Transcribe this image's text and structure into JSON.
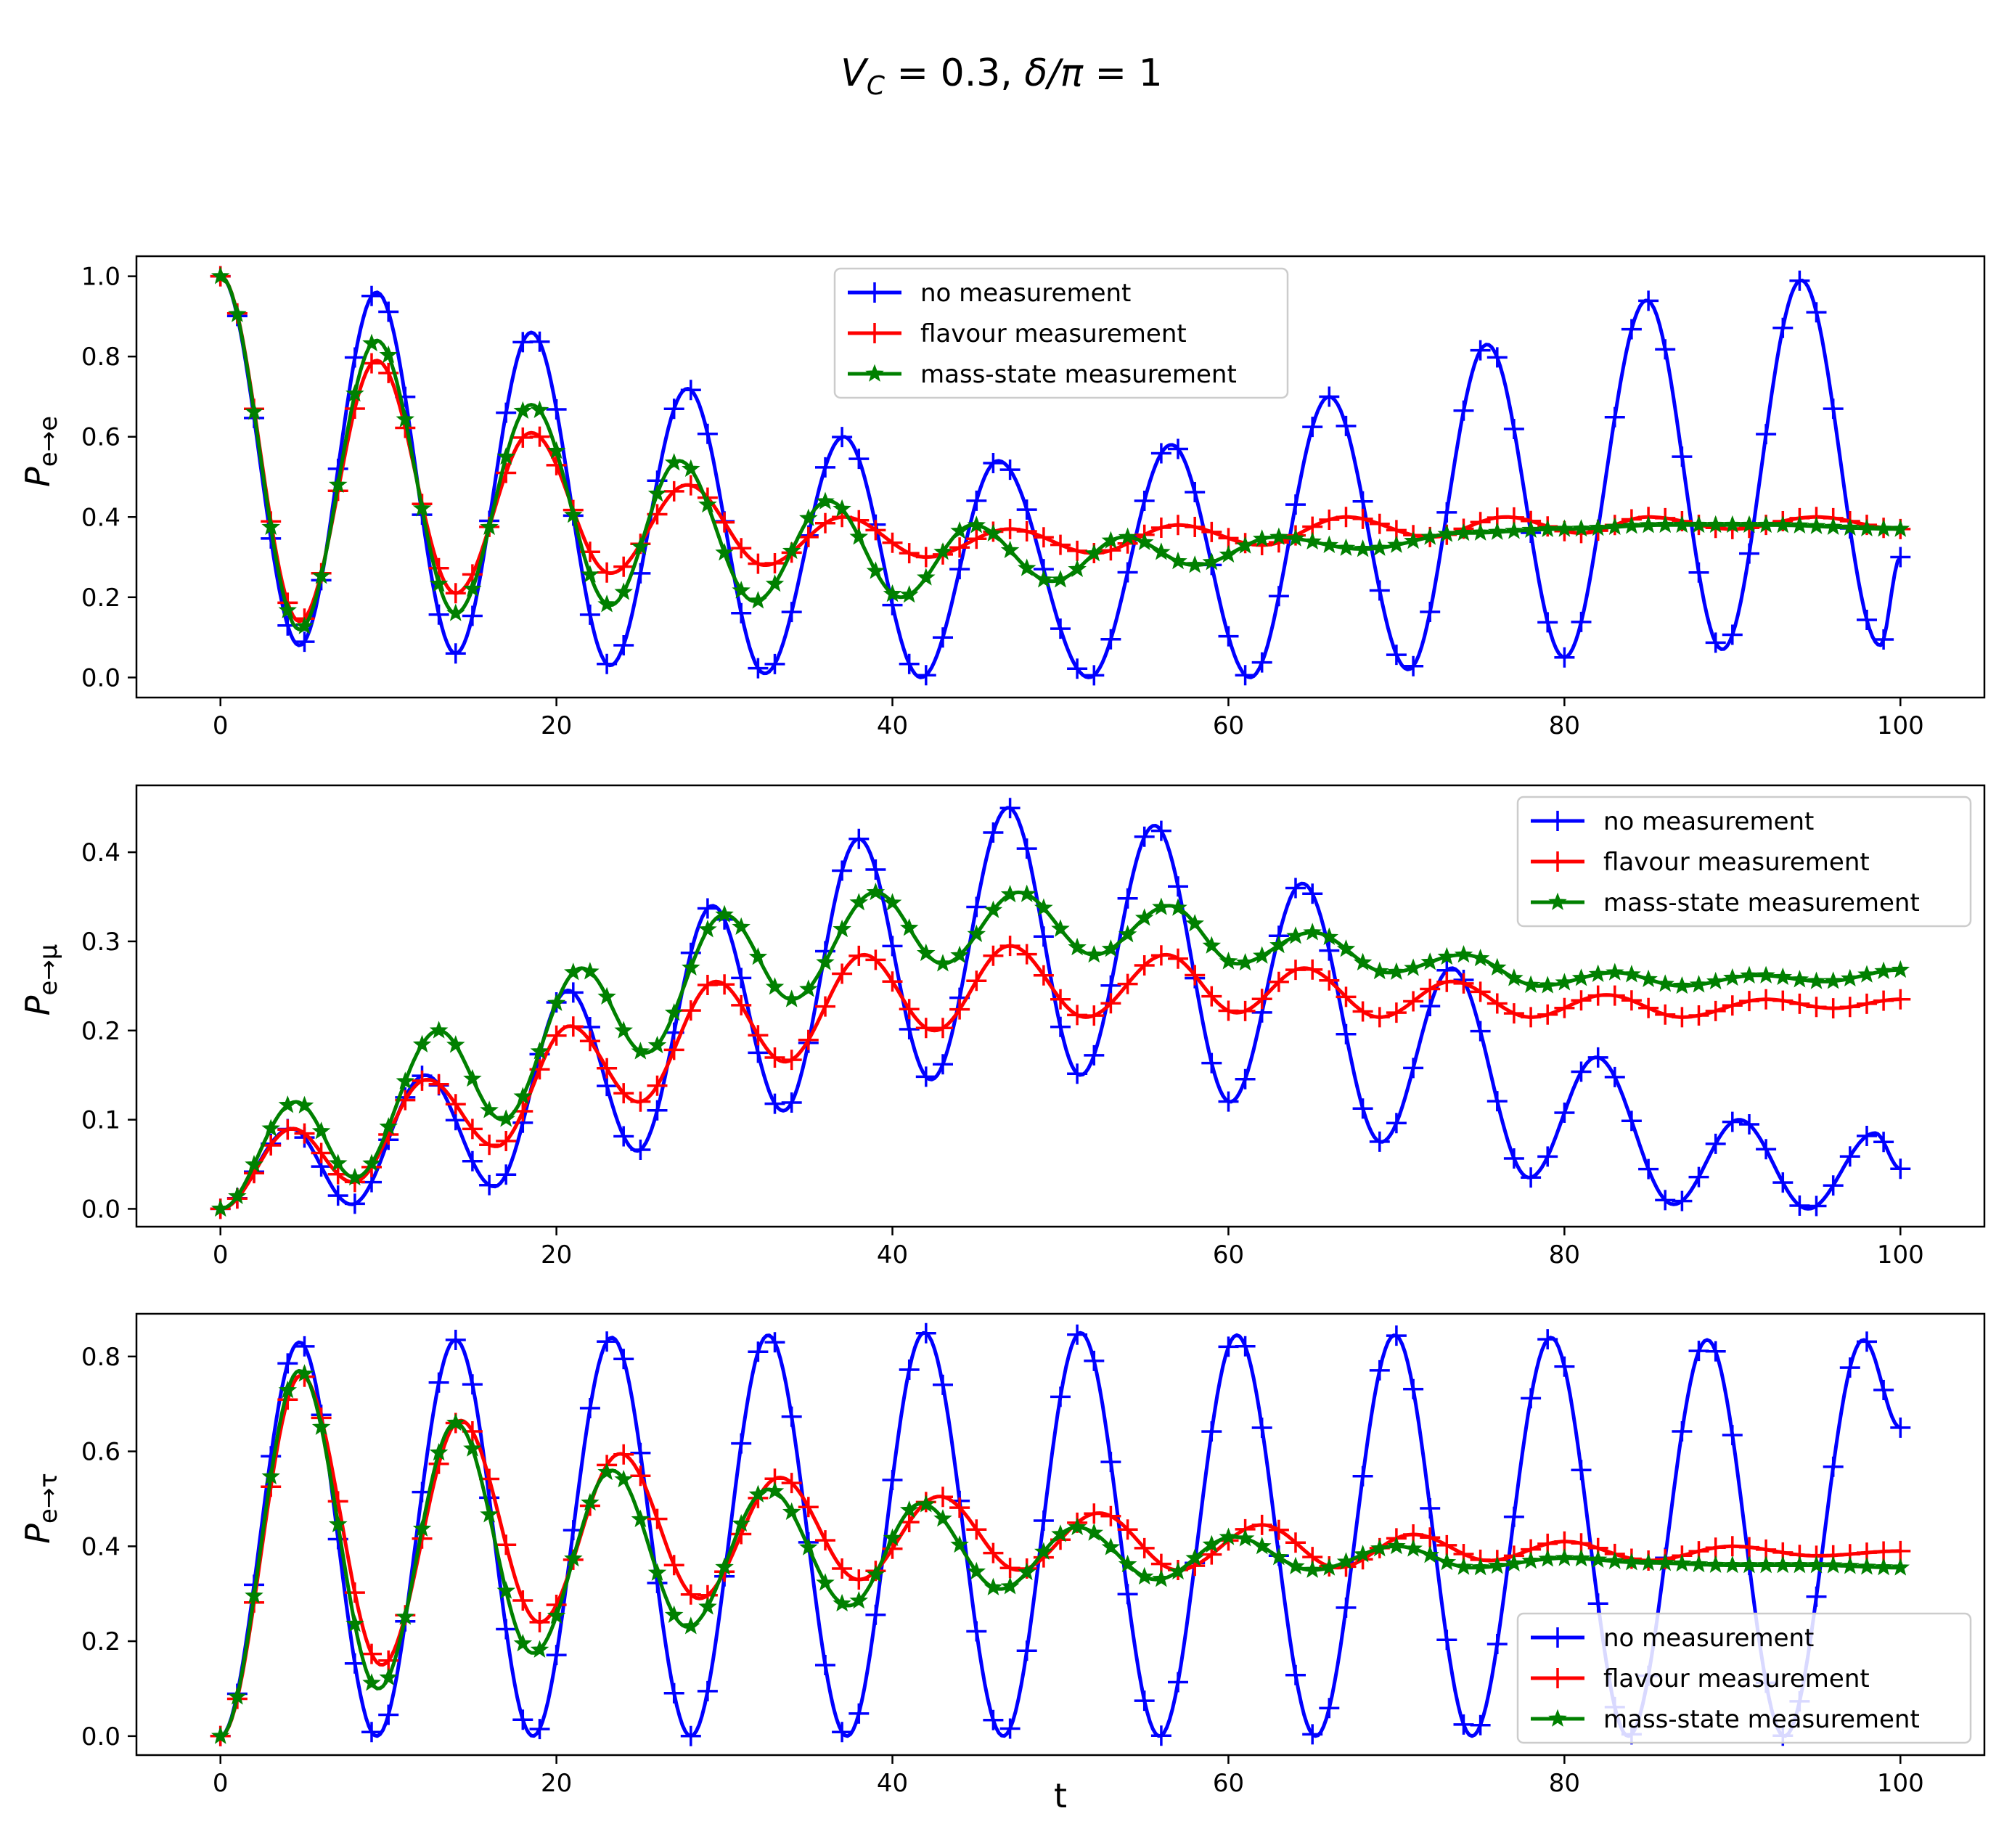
{
  "figure": {
    "suptitle_parts": [
      {
        "id": "vc_sym",
        "text": "V"
      },
      {
        "id": "vc_sub",
        "text": "C"
      },
      {
        "id": "vc_val",
        "text": " = 0.3, "
      },
      {
        "id": "delta_sym",
        "text": "δ/π"
      },
      {
        "id": "delta_val",
        "text": " = 1"
      }
    ],
    "xlabel": "t",
    "legend_labels": [
      "no measurement",
      "flavour measurement",
      "mass-state measurement"
    ],
    "colors": {
      "no": "#0000ff",
      "flavour": "#ff0000",
      "mass": "#008000"
    }
  },
  "chart_data": [
    {
      "type": "line",
      "ylabel": "P_{e→e}",
      "ylabel_parts": [
        "P",
        "e→e"
      ],
      "xlim": [
        -5,
        105
      ],
      "ylim": [
        -0.05,
        1.05
      ],
      "xticks": [
        0,
        20,
        40,
        60,
        80,
        100
      ],
      "xtick_labels": [
        "0",
        "20",
        "40",
        "60",
        "80",
        "100"
      ],
      "yticks": [
        0.0,
        0.2,
        0.4,
        0.6,
        0.8,
        1.0
      ],
      "ytick_labels": [
        "0.0",
        "0.2",
        "0.4",
        "0.6",
        "0.8",
        "1.0"
      ],
      "legend_loc": "upper center",
      "series": [
        {
          "name": "no measurement",
          "color": "#0000ff",
          "marker": "plus",
          "points": [
            [
              0,
              1.0
            ],
            [
              4.7,
              0.08
            ],
            [
              9.3,
              0.96
            ],
            [
              14,
              0.06
            ],
            [
              18.5,
              0.86
            ],
            [
              23.2,
              0.03
            ],
            [
              27.8,
              0.72
            ],
            [
              32.4,
              0.01
            ],
            [
              37.1,
              0.6
            ],
            [
              41.7,
              0.0
            ],
            [
              46.3,
              0.54
            ],
            [
              51.7,
              0.0
            ],
            [
              56.6,
              0.58
            ],
            [
              61.3,
              0.0
            ],
            [
              66,
              0.7
            ],
            [
              70.7,
              0.02
            ],
            [
              75.4,
              0.83
            ],
            [
              80,
              0.05
            ],
            [
              84.9,
              0.94
            ],
            [
              89.4,
              0.07
            ],
            [
              94.1,
              0.99
            ],
            [
              98.8,
              0.08
            ],
            [
              100,
              0.3
            ]
          ]
        },
        {
          "name": "flavour measurement",
          "color": "#ff0000",
          "marker": "plus",
          "points": [
            [
              0,
              1.0
            ],
            [
              4.7,
              0.14
            ],
            [
              9.3,
              0.79
            ],
            [
              14,
              0.21
            ],
            [
              18.5,
              0.61
            ],
            [
              23.2,
              0.26
            ],
            [
              27.8,
              0.48
            ],
            [
              32.4,
              0.28
            ],
            [
              37.1,
              0.4
            ],
            [
              42,
              0.3
            ],
            [
              47,
              0.37
            ],
            [
              52,
              0.31
            ],
            [
              57,
              0.38
            ],
            [
              62,
              0.33
            ],
            [
              67,
              0.4
            ],
            [
              72,
              0.35
            ],
            [
              76.5,
              0.4
            ],
            [
              81,
              0.36
            ],
            [
              85,
              0.4
            ],
            [
              90,
              0.37
            ],
            [
              95,
              0.4
            ],
            [
              100,
              0.37
            ]
          ]
        },
        {
          "name": "mass-state measurement",
          "color": "#008000",
          "marker": "star",
          "points": [
            [
              0,
              1.0
            ],
            [
              4.7,
              0.12
            ],
            [
              9.3,
              0.84
            ],
            [
              14,
              0.16
            ],
            [
              18.5,
              0.68
            ],
            [
              23.2,
              0.18
            ],
            [
              27.3,
              0.54
            ],
            [
              31.8,
              0.19
            ],
            [
              36.2,
              0.44
            ],
            [
              40.5,
              0.2
            ],
            [
              44.8,
              0.38
            ],
            [
              49.5,
              0.24
            ],
            [
              53.8,
              0.35
            ],
            [
              58,
              0.28
            ],
            [
              62.8,
              0.35
            ],
            [
              68,
              0.32
            ],
            [
              74,
              0.36
            ],
            [
              80,
              0.37
            ],
            [
              86,
              0.38
            ],
            [
              92,
              0.38
            ],
            [
              100,
              0.37
            ]
          ]
        }
      ]
    },
    {
      "type": "line",
      "ylabel": "P_{e→μ}",
      "ylabel_parts": [
        "P",
        "e→μ"
      ],
      "xlim": [
        -5,
        105
      ],
      "ylim": [
        -0.02,
        0.475
      ],
      "xticks": [
        0,
        20,
        40,
        60,
        80,
        100
      ],
      "xtick_labels": [
        "0",
        "20",
        "40",
        "60",
        "80",
        "100"
      ],
      "yticks": [
        0.0,
        0.1,
        0.2,
        0.3,
        0.4
      ],
      "ytick_labels": [
        "0.0",
        "0.1",
        "0.2",
        "0.3",
        "0.4"
      ],
      "legend_loc": "upper right",
      "series": [
        {
          "name": "no measurement",
          "color": "#0000ff",
          "marker": "plus",
          "points": [
            [
              0,
              0.0
            ],
            [
              4.2,
              0.09
            ],
            [
              7.8,
              0.005
            ],
            [
              12.2,
              0.15
            ],
            [
              16.3,
              0.025
            ],
            [
              20.7,
              0.245
            ],
            [
              24.8,
              0.065
            ],
            [
              29.3,
              0.34
            ],
            [
              33.5,
              0.11
            ],
            [
              38,
              0.415
            ],
            [
              42.3,
              0.145
            ],
            [
              46.9,
              0.45
            ],
            [
              51.2,
              0.15
            ],
            [
              55.6,
              0.43
            ],
            [
              60.1,
              0.12
            ],
            [
              64.4,
              0.365
            ],
            [
              69.1,
              0.075
            ],
            [
              73.3,
              0.27
            ],
            [
              77.9,
              0.035
            ],
            [
              81.9,
              0.17
            ],
            [
              86.5,
              0.005
            ],
            [
              90.4,
              0.1
            ],
            [
              94.5,
              0.0
            ],
            [
              98.5,
              0.085
            ],
            [
              100,
              0.045
            ]
          ]
        },
        {
          "name": "flavour measurement",
          "color": "#ff0000",
          "marker": "plus",
          "points": [
            [
              0,
              0.0
            ],
            [
              4.3,
              0.09
            ],
            [
              7.9,
              0.03
            ],
            [
              12.3,
              0.145
            ],
            [
              16.4,
              0.07
            ],
            [
              20.8,
              0.205
            ],
            [
              24.9,
              0.12
            ],
            [
              29.5,
              0.255
            ],
            [
              33.6,
              0.165
            ],
            [
              38.3,
              0.285
            ],
            [
              42.5,
              0.2
            ],
            [
              47,
              0.295
            ],
            [
              51.5,
              0.215
            ],
            [
              56.3,
              0.285
            ],
            [
              60.5,
              0.22
            ],
            [
              64.5,
              0.27
            ],
            [
              69,
              0.215
            ],
            [
              73.3,
              0.255
            ],
            [
              78,
              0.215
            ],
            [
              82.5,
              0.24
            ],
            [
              87,
              0.215
            ],
            [
              92,
              0.235
            ],
            [
              96,
              0.225
            ],
            [
              100,
              0.235
            ]
          ]
        },
        {
          "name": "mass-state measurement",
          "color": "#008000",
          "marker": "star",
          "points": [
            [
              0,
              0.0
            ],
            [
              4.5,
              0.12
            ],
            [
              8,
              0.035
            ],
            [
              13,
              0.2
            ],
            [
              16.8,
              0.1
            ],
            [
              21.5,
              0.27
            ],
            [
              25.3,
              0.175
            ],
            [
              30,
              0.33
            ],
            [
              34,
              0.235
            ],
            [
              39,
              0.355
            ],
            [
              43,
              0.275
            ],
            [
              47.5,
              0.355
            ],
            [
              52,
              0.285
            ],
            [
              56.5,
              0.34
            ],
            [
              60.5,
              0.275
            ],
            [
              65,
              0.31
            ],
            [
              69.5,
              0.265
            ],
            [
              74,
              0.285
            ],
            [
              78.5,
              0.25
            ],
            [
              83,
              0.265
            ],
            [
              87,
              0.25
            ],
            [
              91.5,
              0.262
            ],
            [
              95.5,
              0.255
            ],
            [
              100,
              0.268
            ]
          ]
        }
      ]
    },
    {
      "type": "line",
      "ylabel": "P_{e→τ}",
      "ylabel_parts": [
        "P",
        "e→τ"
      ],
      "xlim": [
        -5,
        105
      ],
      "ylim": [
        -0.04,
        0.89
      ],
      "xticks": [
        0,
        20,
        40,
        60,
        80,
        100
      ],
      "xtick_labels": [
        "0",
        "20",
        "40",
        "60",
        "80",
        "100"
      ],
      "yticks": [
        0.0,
        0.2,
        0.4,
        0.6,
        0.8
      ],
      "ytick_labels": [
        "0.0",
        "0.2",
        "0.4",
        "0.6",
        "0.8"
      ],
      "legend_loc": "lower right",
      "series": [
        {
          "name": "no measurement",
          "color": "#0000ff",
          "marker": "plus",
          "points": [
            [
              0,
              0.0
            ],
            [
              4.7,
              0.83
            ],
            [
              9.3,
              0.0
            ],
            [
              14,
              0.835
            ],
            [
              18.6,
              0.0
            ],
            [
              23.3,
              0.84
            ],
            [
              28,
              0.0
            ],
            [
              32.6,
              0.845
            ],
            [
              37.3,
              0.0
            ],
            [
              41.9,
              0.85
            ],
            [
              46.6,
              0.0
            ],
            [
              51.2,
              0.85
            ],
            [
              55.9,
              0.0
            ],
            [
              60.5,
              0.845
            ],
            [
              65.2,
              0.0
            ],
            [
              69.9,
              0.845
            ],
            [
              74.5,
              0.0
            ],
            [
              79.2,
              0.84
            ],
            [
              83.8,
              0.0
            ],
            [
              88.5,
              0.835
            ],
            [
              93.1,
              0.0
            ],
            [
              97.8,
              0.835
            ],
            [
              100,
              0.65
            ]
          ]
        },
        {
          "name": "flavour measurement",
          "color": "#ff0000",
          "marker": "plus",
          "points": [
            [
              0,
              0.0
            ],
            [
              4.8,
              0.76
            ],
            [
              9.6,
              0.15
            ],
            [
              14.3,
              0.665
            ],
            [
              19,
              0.24
            ],
            [
              23.8,
              0.595
            ],
            [
              28.5,
              0.29
            ],
            [
              33.3,
              0.545
            ],
            [
              38,
              0.33
            ],
            [
              42.8,
              0.505
            ],
            [
              47.5,
              0.35
            ],
            [
              52.3,
              0.47
            ],
            [
              57,
              0.35
            ],
            [
              62,
              0.445
            ],
            [
              66.5,
              0.355
            ],
            [
              71,
              0.425
            ],
            [
              75.5,
              0.37
            ],
            [
              80,
              0.41
            ],
            [
              85,
              0.37
            ],
            [
              90,
              0.4
            ],
            [
              95,
              0.38
            ],
            [
              100,
              0.39
            ]
          ]
        },
        {
          "name": "mass-state measurement",
          "color": "#008000",
          "marker": "star",
          "points": [
            [
              0,
              0.0
            ],
            [
              4.7,
              0.77
            ],
            [
              9.4,
              0.1
            ],
            [
              14,
              0.66
            ],
            [
              18.6,
              0.175
            ],
            [
              23.3,
              0.56
            ],
            [
              27.8,
              0.23
            ],
            [
              32.6,
              0.52
            ],
            [
              37.4,
              0.275
            ],
            [
              41.7,
              0.49
            ],
            [
              46.4,
              0.31
            ],
            [
              51,
              0.44
            ],
            [
              55.7,
              0.33
            ],
            [
              60.3,
              0.42
            ],
            [
              65,
              0.35
            ],
            [
              70,
              0.4
            ],
            [
              74.5,
              0.355
            ],
            [
              80,
              0.375
            ],
            [
              85,
              0.365
            ],
            [
              90,
              0.36
            ],
            [
              95,
              0.36
            ],
            [
              100,
              0.355
            ]
          ]
        }
      ]
    }
  ]
}
